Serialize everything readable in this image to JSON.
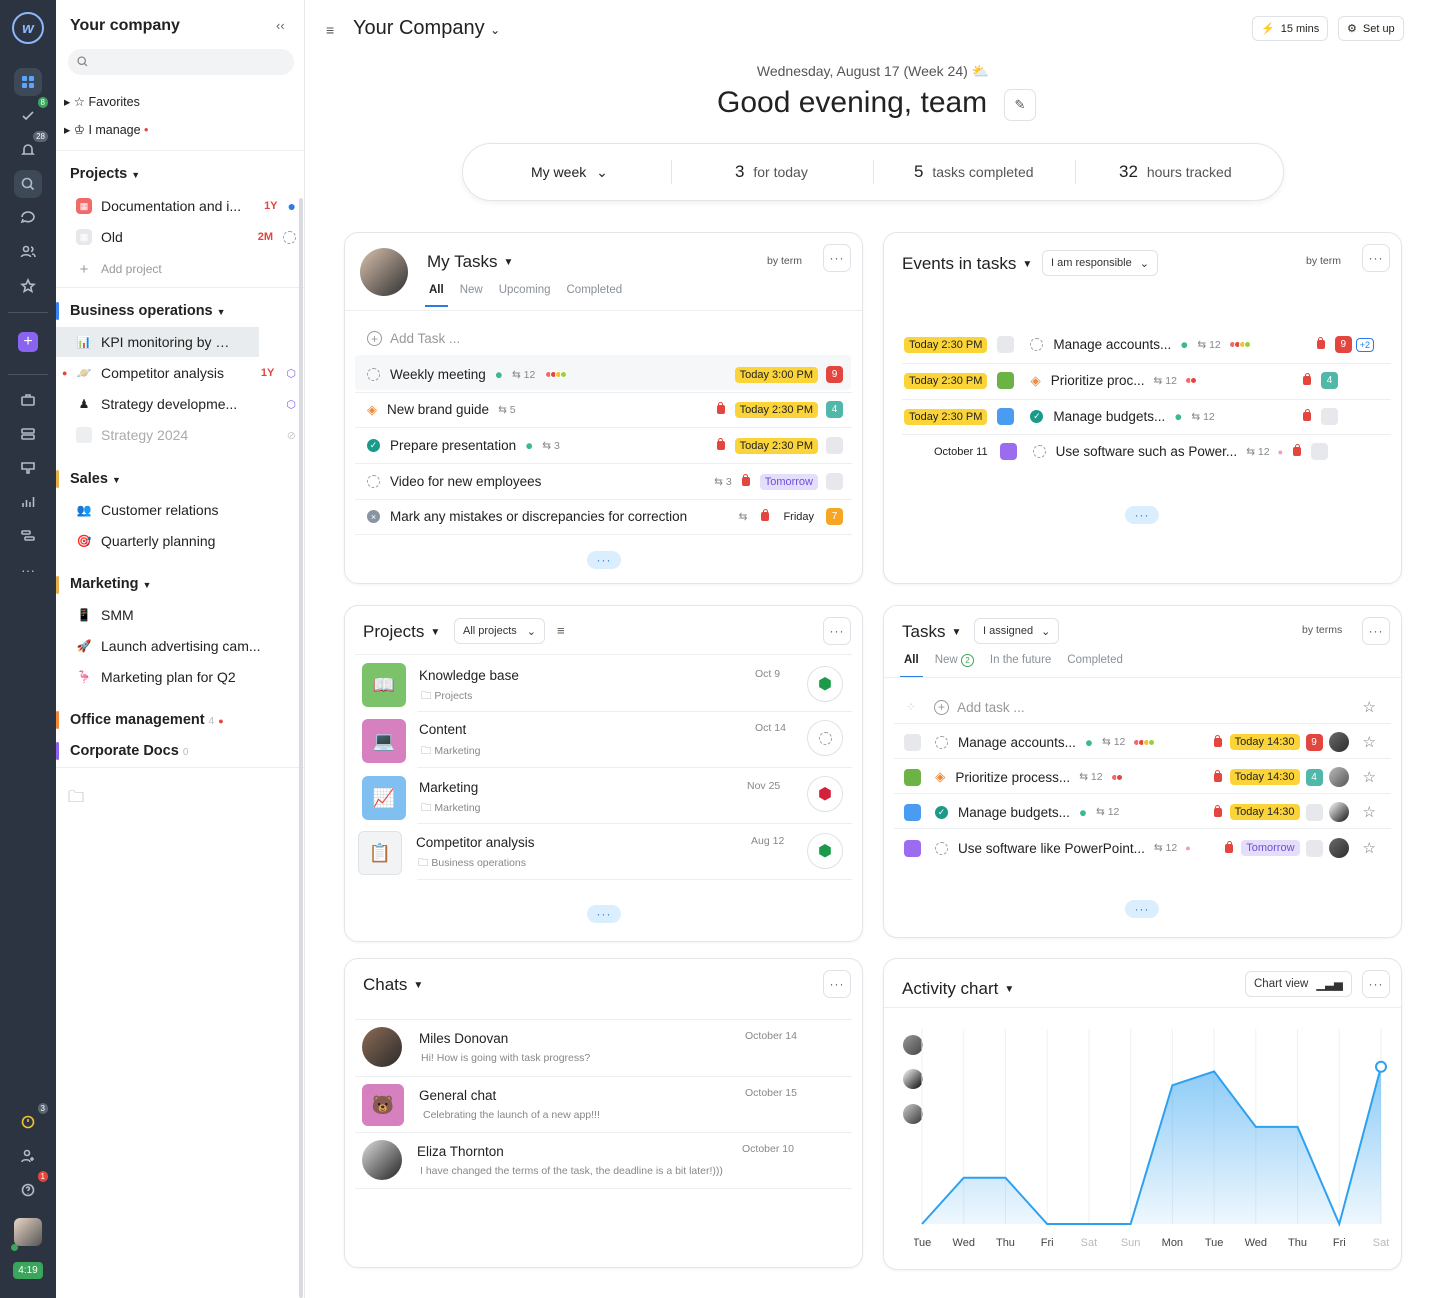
{
  "rail": {
    "badge_tasks": "8",
    "badge_notif": "28",
    "badge_timer": "3",
    "badge_help": "1",
    "time": "4:19"
  },
  "sidebar": {
    "company": "Your company",
    "favorites": "Favorites",
    "i_manage": "I manage",
    "projects_title": "Projects",
    "projects": [
      {
        "label": "Documentation and i...",
        "tag": "1Y"
      },
      {
        "label": "Old",
        "tag": "2M"
      }
    ],
    "add_project": "Add project",
    "groups": [
      {
        "title": "Business operations",
        "items": [
          "KPI monitoring by de...",
          "Competitor analysis",
          "Strategy developme...",
          "Strategy 2024"
        ],
        "tags": [
          "",
          "1Y",
          "",
          ""
        ]
      },
      {
        "title": "Sales",
        "items": [
          "Customer relations",
          "Quarterly planning"
        ]
      },
      {
        "title": "Marketing",
        "items": [
          "SMM",
          "Launch advertising cam...",
          "Marketing plan for Q2"
        ]
      },
      {
        "title": "Office management",
        "count": "4"
      },
      {
        "title": "Corporate Docs",
        "count": "0"
      }
    ]
  },
  "header": {
    "title": "Your Company",
    "timer": "15 mins",
    "setup": "Set up",
    "date": "Wednesday, August 17 (Week 24)",
    "greeting": "Good evening, team"
  },
  "stats": {
    "period": "My week",
    "today_n": "3",
    "today_l": "for today",
    "done_n": "5",
    "done_l": "tasks completed",
    "hours_n": "32",
    "hours_l": "hours tracked"
  },
  "mytasks": {
    "title": "My Tasks",
    "by": "by term",
    "tabs": [
      "All",
      "New",
      "Upcoming",
      "Completed"
    ],
    "add": "Add Task ...",
    "rows": [
      {
        "name": "Weekly meeting",
        "sub": "12",
        "due": "Today 3:00 PM",
        "n": "9"
      },
      {
        "name": "New brand guide",
        "sub": "5",
        "due": "Today 2:30 PM",
        "n": "4"
      },
      {
        "name": "Prepare presentation",
        "sub": "3",
        "due": "Today 2:30 PM",
        "n": ""
      },
      {
        "name": "Video for new employees",
        "sub": "3",
        "due": "Tomorrow",
        "n": ""
      },
      {
        "name": "Mark any mistakes or discrepancies for correction",
        "sub": "",
        "due": "Friday",
        "n": "7"
      }
    ]
  },
  "events": {
    "title": "Events in tasks",
    "filter": "I am responsible",
    "by": "by term",
    "rows": [
      {
        "date": "Today 2:30 PM",
        "name": "Manage accounts...",
        "sub": "12",
        "n": "9",
        "extra": "+2"
      },
      {
        "date": "Today 2:30 PM",
        "name": "Prioritize proc...",
        "sub": "12",
        "n": "4",
        "extra": ""
      },
      {
        "date": "Today 2:30 PM",
        "name": "Manage budgets...",
        "sub": "12",
        "n": "",
        "extra": ""
      },
      {
        "date": "October 11",
        "name": "Use software such as Power...",
        "sub": "12",
        "n": "",
        "extra": ""
      }
    ]
  },
  "projects": {
    "title": "Projects",
    "filter": "All projects",
    "rows": [
      {
        "name": "Knowledge base",
        "folder": "Projects",
        "date": "Oct 9"
      },
      {
        "name": "Content",
        "folder": "Marketing",
        "date": "Oct 14"
      },
      {
        "name": "Marketing",
        "folder": "Marketing",
        "date": "Nov 25"
      },
      {
        "name": "Competitor analysis",
        "folder": "Business operations",
        "date": "Aug 12"
      }
    ]
  },
  "tasks": {
    "title": "Tasks",
    "filter": "I assigned",
    "by": "by terms",
    "tabs": [
      "All",
      "New",
      "In the future",
      "Completed"
    ],
    "new_count": "2",
    "add": "Add task ...",
    "rows": [
      {
        "name": "Manage accounts...",
        "sub": "12",
        "due": "Today 14:30",
        "n": "9"
      },
      {
        "name": "Prioritize process...",
        "sub": "12",
        "due": "Today 14:30",
        "n": "4"
      },
      {
        "name": "Manage budgets...",
        "sub": "12",
        "due": "Today 14:30",
        "n": ""
      },
      {
        "name": "Use software like PowerPoint...",
        "sub": "12",
        "due": "Tomorrow",
        "n": ""
      }
    ]
  },
  "chats": {
    "title": "Chats",
    "rows": [
      {
        "name": "Miles Donovan",
        "msg": "Hi! How is going with task progress?",
        "date": "October 14"
      },
      {
        "name": "General chat",
        "msg": "Celebrating the launch of a new app!!!",
        "date": "October 15"
      },
      {
        "name": "Eliza Thornton",
        "msg": "I have changed the terms of the task, the deadline is a bit later!)))",
        "date": "October 10"
      }
    ]
  },
  "activity": {
    "title": "Activity chart",
    "view": "Chart view"
  },
  "chart_data": {
    "type": "area",
    "categories": [
      "Tue",
      "Wed",
      "Thu",
      "Fri",
      "Sat",
      "Sun",
      "Mon",
      "Tue",
      "Wed",
      "Thu",
      "Fri",
      "Sat"
    ],
    "values": [
      0,
      1,
      1,
      0,
      0,
      0,
      3,
      3.3,
      2.1,
      2.1,
      0,
      3.4
    ],
    "ylim": [
      0,
      4
    ],
    "grid": true,
    "color": "#2ea0f0"
  }
}
